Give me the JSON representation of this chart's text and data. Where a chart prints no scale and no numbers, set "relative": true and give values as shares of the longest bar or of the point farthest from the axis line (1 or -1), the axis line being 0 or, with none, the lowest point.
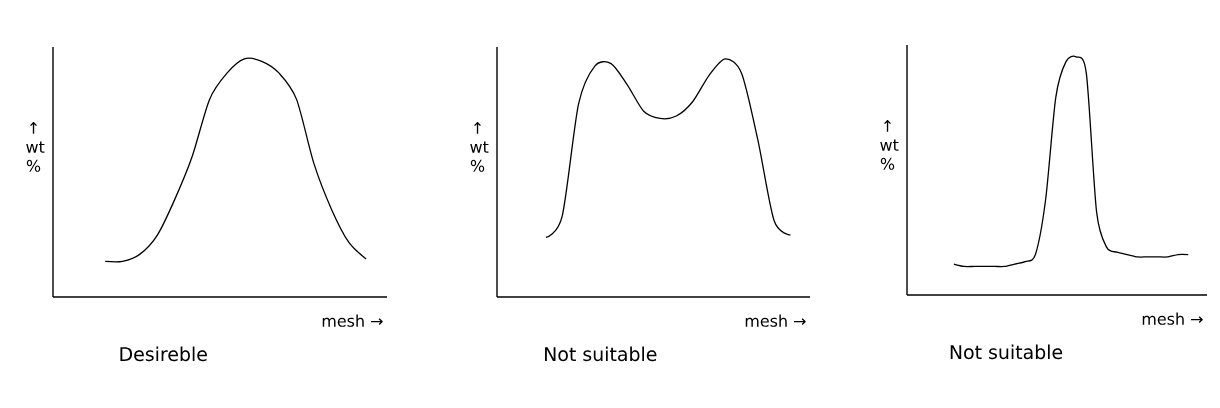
{
  "chart_data": [
    {
      "type": "line",
      "title": "Desireble",
      "xlabel": "mesh →",
      "ylabel": "↑ wt %",
      "relative": true,
      "categories": [
        null,
        null,
        null,
        null,
        null,
        null,
        null,
        null,
        null,
        null,
        null,
        null,
        null,
        null,
        null,
        null
      ],
      "series": [
        {
          "color": "#000000",
          "values": [
            0.15,
            0.15,
            0.18,
            0.26,
            0.41,
            0.59,
            0.83,
            0.94,
            1.0,
            0.99,
            0.94,
            0.83,
            0.56,
            0.37,
            0.23,
            0.16
          ]
        }
      ]
    },
    {
      "type": "line",
      "title": "Not suitable",
      "xlabel": "mesh →",
      "ylabel": "↑ wt %",
      "relative": true,
      "categories": [
        null,
        null,
        null,
        null,
        null,
        null,
        null,
        null,
        null,
        null,
        null,
        null,
        null,
        null,
        null,
        null
      ],
      "series": [
        {
          "color": "#000000",
          "values": [
            0.25,
            0.34,
            0.81,
            0.97,
            0.98,
            0.89,
            0.78,
            0.75,
            0.76,
            0.82,
            0.93,
            1.0,
            0.94,
            0.66,
            0.32,
            0.26
          ]
        }
      ]
    },
    {
      "type": "line",
      "title": "Not suitable",
      "xlabel": "mesh →",
      "ylabel": "↑ wt %",
      "relative": true,
      "categories": [
        null,
        null,
        null,
        null,
        null,
        null,
        null,
        null,
        null,
        null,
        null,
        null,
        null,
        null,
        null,
        null,
        null,
        null,
        null,
        null,
        null,
        null,
        null,
        null
      ],
      "series": [
        {
          "color": "#000000",
          "values": [
            0.13,
            0.12,
            0.12,
            0.12,
            0.12,
            0.12,
            0.13,
            0.14,
            0.17,
            0.4,
            0.83,
            0.98,
            1.0,
            0.93,
            0.35,
            0.2,
            0.18,
            0.17,
            0.16,
            0.16,
            0.16,
            0.16,
            0.17,
            0.17
          ]
        }
      ]
    }
  ]
}
